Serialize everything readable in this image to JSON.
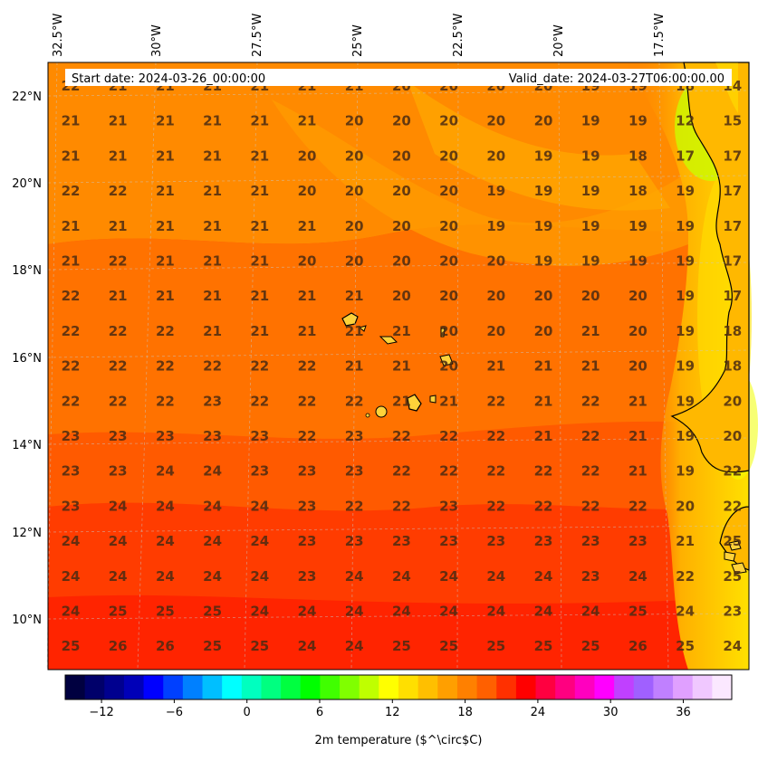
{
  "header": {
    "start_date": "Start date: 2024-03-26_00:00:00",
    "valid_date": "Valid_date: 2024-03-27T06:00:00.00"
  },
  "axes": {
    "lon_labels": [
      "32.5°W",
      "30°W",
      "27.5°W",
      "25°W",
      "22.5°W",
      "20°W",
      "17.5°W"
    ],
    "lat_labels": [
      "22°N",
      "20°N",
      "18°N",
      "16°N",
      "14°N",
      "12°N",
      "10°N"
    ]
  },
  "colorbar": {
    "label": "2m temperature ($^\\circ$C)",
    "ticks": [
      "−12",
      "−6",
      "0",
      "6",
      "12",
      "18",
      "24",
      "30",
      "36"
    ],
    "min": -15,
    "max": 40,
    "colors": [
      "#000040",
      "#00006a",
      "#00008f",
      "#0000b8",
      "#0000ff",
      "#0040ff",
      "#0080ff",
      "#00bfff",
      "#00ffff",
      "#00ffbf",
      "#00ff80",
      "#00ff40",
      "#00ff00",
      "#40ff00",
      "#80ff00",
      "#bfff00",
      "#ffff00",
      "#ffdf00",
      "#ffbf00",
      "#ff9f00",
      "#ff8000",
      "#ff6000",
      "#ff3000",
      "#ff0000",
      "#ff0040",
      "#ff0080",
      "#ff00bf",
      "#ff00ff",
      "#c040ff",
      "#a060ff",
      "#c080ff",
      "#e0a0ff",
      "#f0c8ff",
      "#fbe8ff"
    ]
  },
  "chart_data": {
    "type": "heatmap",
    "title": "",
    "xlabel": "",
    "ylabel": "",
    "value_label": "2m temperature (°C)",
    "grid": [
      [
        22,
        21,
        21,
        21,
        21,
        21,
        21,
        20,
        20,
        20,
        20,
        19,
        19,
        18,
        14
      ],
      [
        21,
        21,
        21,
        21,
        21,
        21,
        20,
        20,
        20,
        20,
        20,
        19,
        19,
        12,
        15
      ],
      [
        21,
        21,
        21,
        21,
        21,
        20,
        20,
        20,
        20,
        20,
        19,
        19,
        18,
        17,
        17
      ],
      [
        22,
        22,
        21,
        21,
        21,
        20,
        20,
        20,
        20,
        19,
        19,
        19,
        18,
        19,
        17
      ],
      [
        21,
        21,
        21,
        21,
        21,
        21,
        20,
        20,
        20,
        19,
        19,
        19,
        19,
        19,
        17
      ],
      [
        21,
        22,
        21,
        21,
        21,
        20,
        20,
        20,
        20,
        20,
        19,
        19,
        19,
        19,
        17
      ],
      [
        22,
        21,
        21,
        21,
        21,
        21,
        21,
        20,
        20,
        20,
        20,
        20,
        20,
        19,
        17
      ],
      [
        22,
        22,
        22,
        21,
        21,
        21,
        21,
        21,
        20,
        20,
        20,
        21,
        20,
        19,
        18
      ],
      [
        22,
        22,
        22,
        22,
        22,
        22,
        21,
        21,
        20,
        21,
        21,
        21,
        20,
        19,
        18
      ],
      [
        22,
        22,
        22,
        23,
        22,
        22,
        22,
        21,
        21,
        22,
        21,
        22,
        21,
        19,
        20
      ],
      [
        23,
        23,
        23,
        23,
        23,
        22,
        23,
        22,
        22,
        22,
        21,
        22,
        21,
        19,
        20
      ],
      [
        23,
        23,
        24,
        24,
        23,
        23,
        23,
        22,
        22,
        22,
        22,
        22,
        21,
        19,
        22
      ],
      [
        23,
        24,
        24,
        24,
        24,
        23,
        22,
        22,
        23,
        22,
        22,
        22,
        22,
        20,
        22
      ],
      [
        24,
        24,
        24,
        24,
        24,
        23,
        23,
        23,
        23,
        23,
        23,
        23,
        23,
        21,
        25
      ],
      [
        24,
        24,
        24,
        24,
        24,
        23,
        24,
        24,
        24,
        24,
        24,
        23,
        24,
        22,
        25
      ],
      [
        24,
        25,
        25,
        25,
        24,
        24,
        24,
        24,
        24,
        24,
        24,
        24,
        25,
        24,
        23
      ],
      [
        25,
        26,
        26,
        25,
        25,
        24,
        24,
        25,
        25,
        25,
        25,
        25,
        26,
        25,
        24
      ]
    ]
  }
}
